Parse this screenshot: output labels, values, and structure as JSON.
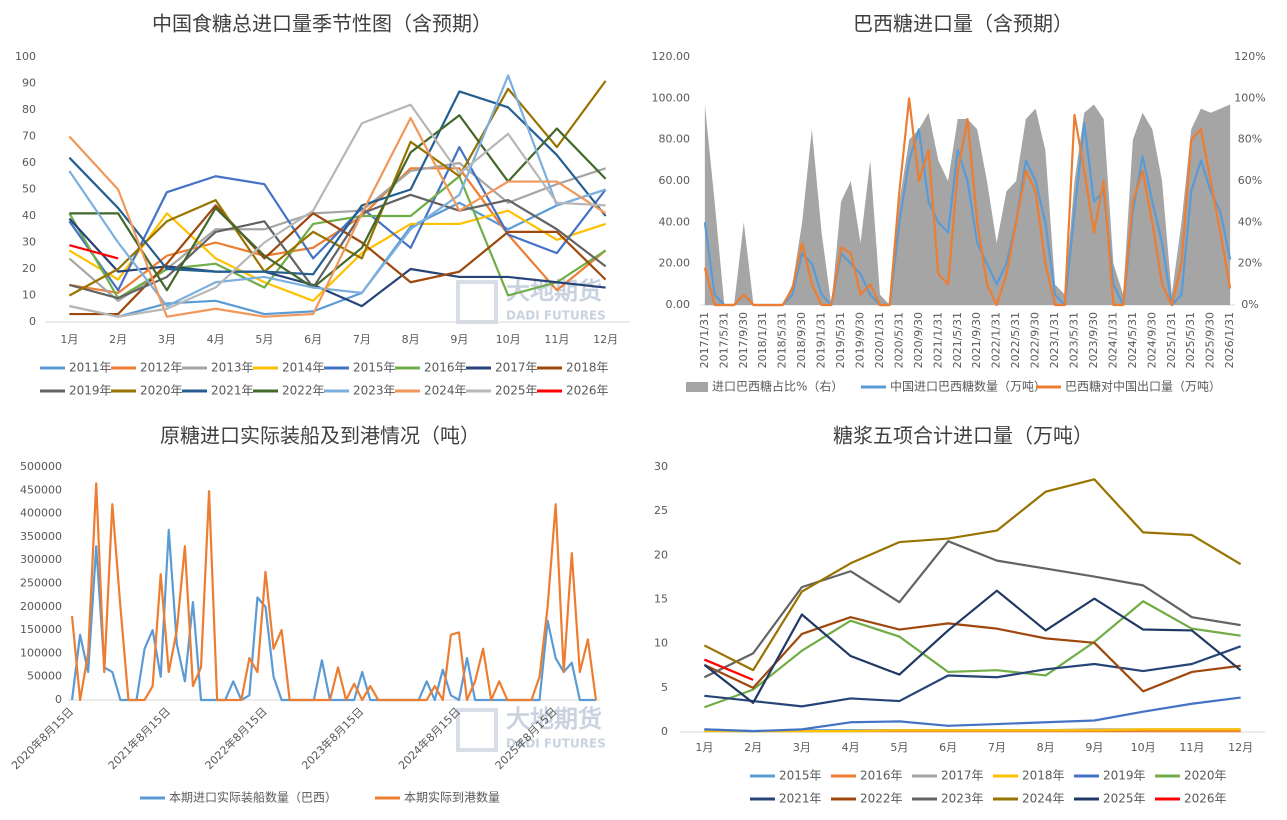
{
  "watermark": {
    "cn": "大地期货",
    "en": "DADI FUTURES"
  },
  "chart_data": [
    {
      "type": "line",
      "title": "中国食糖总进口量季节性图（含预期）",
      "categories": [
        "1月",
        "2月",
        "3月",
        "4月",
        "5月",
        "6月",
        "7月",
        "8月",
        "9月",
        "10月",
        "11月",
        "12月"
      ],
      "ylim": [
        0,
        100
      ],
      "yticks": [
        0,
        10,
        20,
        30,
        40,
        50,
        60,
        70,
        80,
        90,
        100
      ],
      "series": [
        {
          "name": "2011年",
          "color": "#5b9bd5",
          "values": [
            6,
            2,
            7,
            8,
            3,
            4,
            11,
            36,
            45,
            35,
            44,
            50
          ]
        },
        {
          "name": "2012年",
          "color": "#ed7d31",
          "values": [
            14,
            11,
            25,
            30,
            25,
            28,
            40,
            58,
            58,
            33,
            12,
            27
          ]
        },
        {
          "name": "2013年",
          "color": "#a5a5a5",
          "values": [
            24,
            8,
            20,
            35,
            35,
            41,
            42,
            57,
            60,
            45,
            52,
            58
          ]
        },
        {
          "name": "2014年",
          "color": "#ffc000",
          "values": [
            27,
            16,
            41,
            24,
            15,
            8,
            26,
            37,
            37,
            42,
            31,
            37
          ]
        },
        {
          "name": "2015年",
          "color": "#4472c4",
          "values": [
            38,
            12,
            49,
            55,
            52,
            24,
            43,
            28,
            66,
            33,
            26,
            50
          ]
        },
        {
          "name": "2016年",
          "color": "#70ad47",
          "values": [
            41,
            9,
            20,
            22,
            13,
            37,
            40,
            40,
            55,
            10,
            15,
            27
          ]
        },
        {
          "name": "2017年",
          "color": "#264478",
          "values": [
            39,
            19,
            21,
            19,
            19,
            14,
            6,
            20,
            17,
            17,
            15,
            13
          ]
        },
        {
          "name": "2018年",
          "color": "#9e480e",
          "values": [
            3,
            3,
            22,
            44,
            24,
            41,
            30,
            15,
            19,
            34,
            34,
            16
          ]
        },
        {
          "name": "2019年",
          "color": "#636363",
          "values": [
            14,
            9,
            17,
            34,
            38,
            13,
            41,
            48,
            42,
            46,
            35,
            21
          ]
        },
        {
          "name": "2020年",
          "color": "#997300",
          "values": [
            10,
            20,
            38,
            46,
            19,
            34,
            24,
            68,
            55,
            88,
            66,
            91
          ]
        },
        {
          "name": "2021年",
          "color": "#255e91",
          "values": [
            62,
            43,
            20,
            19,
            19,
            18,
            44,
            50,
            87,
            81,
            63,
            40
          ]
        },
        {
          "name": "2022年",
          "color": "#43682b",
          "values": [
            41,
            41,
            12,
            43,
            25,
            13,
            28,
            64,
            78,
            53,
            73,
            54
          ]
        },
        {
          "name": "2023年",
          "color": "#7cafdd",
          "values": [
            57,
            30,
            6,
            15,
            17,
            13,
            11,
            35,
            48,
            93,
            44,
            50
          ]
        },
        {
          "name": "2024年",
          "color": "#f1975a",
          "values": [
            70,
            50,
            2,
            5,
            2,
            3,
            41,
            77,
            42,
            53,
            53,
            41
          ]
        },
        {
          "name": "2025年",
          "color": "#b7b7b7",
          "values": [
            6,
            2,
            5,
            13,
            30,
            42,
            75,
            82,
            56,
            71,
            45,
            44
          ]
        },
        {
          "name": "2026年",
          "color": "#ff0000",
          "values": [
            29,
            24,
            null,
            null,
            null,
            null,
            null,
            null,
            null,
            null,
            null,
            null
          ]
        }
      ]
    },
    {
      "type": "line",
      "title": "巴西糖进口量（含预期）",
      "categories": [
        "2017/1/31",
        null,
        "2017/5/31",
        null,
        "2017/9/30",
        null,
        "2018/1/31",
        null,
        "2018/5/31",
        null,
        "2018/9/30",
        null,
        "2019/1/31",
        null,
        "2019/5/31",
        null,
        "2019/9/30",
        null,
        "2020/1/31",
        null,
        "2020/5/31",
        null,
        "2020/9/30",
        null,
        "2021/1/31",
        null,
        "2021/5/31",
        null,
        "2021/9/30",
        null,
        "2022/1/31",
        null,
        "2022/5/31",
        null,
        "2022/9/30",
        null,
        "2023/1/31",
        null,
        "2023/5/31",
        null,
        "2023/9/30",
        null,
        "2024/1/31",
        null,
        "2024/5/31",
        null,
        "2024/9/30",
        null,
        "2025/1/31",
        null,
        "2025/5/31",
        null,
        "2025/9/30",
        null,
        "2026/1/31"
      ],
      "ylim": [
        0,
        120
      ],
      "yticks": [
        {
          "value": 0,
          "label": "0.00"
        },
        {
          "value": 20,
          "label": "20.00"
        },
        {
          "value": 40,
          "label": "40.00"
        },
        {
          "value": 60,
          "label": "60.00"
        },
        {
          "value": 80,
          "label": "80.00"
        },
        {
          "value": 100,
          "label": "100.00"
        },
        {
          "value": 120,
          "label": "120.00"
        }
      ],
      "y2lim": [
        0,
        120
      ],
      "y2ticks": [
        {
          "value": 0,
          "label": "0%"
        },
        {
          "value": 20,
          "label": "20%"
        },
        {
          "value": 40,
          "label": "40%"
        },
        {
          "value": 60,
          "label": "60%"
        },
        {
          "value": 80,
          "label": "80%"
        },
        {
          "value": 100,
          "label": "100%"
        },
        {
          "value": 120,
          "label": "120%"
        }
      ],
      "series": [
        {
          "name": "进口巴西糖占比%（右）",
          "type": "area",
          "axis": "y2",
          "color": "#a5a5a5",
          "values": [
            97,
            50,
            0,
            0,
            40,
            0,
            0,
            0,
            0,
            10,
            40,
            85,
            35,
            0,
            50,
            60,
            30,
            70,
            5,
            0,
            50,
            80,
            85,
            93,
            70,
            60,
            90,
            90,
            85,
            60,
            30,
            55,
            60,
            90,
            95,
            75,
            10,
            5,
            60,
            93,
            97,
            90,
            20,
            5,
            80,
            93,
            85,
            60,
            5,
            40,
            85,
            95,
            93,
            95,
            97
          ]
        },
        {
          "name": "中国进口巴西糖数量（万吨）",
          "color": "#5b9bd5",
          "values": [
            40,
            5,
            0,
            0,
            5,
            0,
            0,
            0,
            0,
            5,
            25,
            20,
            5,
            0,
            25,
            20,
            15,
            5,
            0,
            0,
            40,
            70,
            85,
            50,
            40,
            35,
            75,
            60,
            30,
            20,
            10,
            20,
            40,
            70,
            60,
            40,
            5,
            0,
            45,
            88,
            50,
            55,
            10,
            0,
            45,
            72,
            50,
            30,
            0,
            5,
            55,
            70,
            55,
            45,
            22
          ]
        },
        {
          "name": "巴西糖对中国出口量（万吨）",
          "color": "#ed7d31",
          "values": [
            18,
            0,
            0,
            0,
            5,
            0,
            0,
            0,
            0,
            8,
            30,
            10,
            0,
            0,
            28,
            25,
            5,
            10,
            0,
            0,
            55,
            100,
            60,
            75,
            15,
            10,
            65,
            90,
            40,
            10,
            0,
            15,
            40,
            65,
            55,
            20,
            0,
            0,
            92,
            65,
            35,
            60,
            0,
            0,
            50,
            65,
            40,
            10,
            0,
            20,
            80,
            85,
            60,
            35,
            8
          ]
        }
      ]
    },
    {
      "type": "line",
      "title": "原糖进口实际装船及到港情况（吨）",
      "categories": [
        "2020年8月15日",
        null,
        null,
        null,
        null,
        null,
        null,
        null,
        null,
        null,
        null,
        null,
        "2021年8月15日",
        null,
        null,
        null,
        null,
        null,
        null,
        null,
        null,
        null,
        null,
        null,
        "2022年8月15日",
        null,
        null,
        null,
        null,
        null,
        null,
        null,
        null,
        null,
        null,
        null,
        "2023年8月15日",
        null,
        null,
        null,
        null,
        null,
        null,
        null,
        null,
        null,
        null,
        null,
        "2024年8月15日",
        null,
        null,
        null,
        null,
        null,
        null,
        null,
        null,
        null,
        null,
        null,
        "2025年8月15日",
        null,
        null,
        null,
        null,
        null
      ],
      "ylim": [
        0,
        500000
      ],
      "yticks": [
        0,
        50000,
        100000,
        150000,
        200000,
        250000,
        300000,
        350000,
        400000,
        450000,
        500000
      ],
      "series": [
        {
          "name": "本期进口实际装船数量（巴西）",
          "color": "#5b9bd5",
          "values": [
            0,
            140000,
            60000,
            330000,
            70000,
            60000,
            0,
            0,
            0,
            110000,
            150000,
            50000,
            365000,
            120000,
            40000,
            210000,
            0,
            0,
            0,
            0,
            40000,
            0,
            10000,
            220000,
            200000,
            50000,
            0,
            0,
            0,
            0,
            0,
            85000,
            0,
            0,
            0,
            0,
            60000,
            0,
            0,
            0,
            0,
            0,
            0,
            0,
            40000,
            0,
            65000,
            10000,
            0,
            90000,
            0,
            0,
            0,
            0,
            0,
            0,
            0,
            0,
            0,
            170000,
            90000,
            60000,
            80000,
            0,
            0,
            0
          ]
        },
        {
          "name": "本期实际到港数量",
          "color": "#ed7d31",
          "values": [
            180000,
            0,
            100000,
            465000,
            60000,
            420000,
            200000,
            0,
            0,
            0,
            30000,
            270000,
            60000,
            150000,
            330000,
            30000,
            70000,
            448000,
            0,
            0,
            0,
            0,
            90000,
            60000,
            275000,
            110000,
            150000,
            0,
            0,
            0,
            0,
            0,
            0,
            70000,
            0,
            35000,
            0,
            30000,
            0,
            0,
            0,
            0,
            0,
            0,
            0,
            30000,
            0,
            140000,
            145000,
            0,
            40000,
            110000,
            0,
            40000,
            0,
            0,
            0,
            0,
            50000,
            200000,
            420000,
            60000,
            315000,
            60000,
            130000,
            0
          ]
        }
      ]
    },
    {
      "type": "line",
      "title": "糖浆五项合计进口量（万吨）",
      "categories": [
        "1月",
        "2月",
        "3月",
        "4月",
        "5月",
        "6月",
        "7月",
        "8月",
        "9月",
        "10月",
        "11月",
        "12月"
      ],
      "ylim": [
        0,
        30
      ],
      "yticks": [
        0,
        5,
        10,
        15,
        20,
        25,
        30
      ],
      "series": [
        {
          "name": "2015年",
          "color": "#5b9bd5",
          "values": [
            0.3,
            0.1,
            0.2,
            0.2,
            0.2,
            0.2,
            0.2,
            0.2,
            0.2,
            0.2,
            0.2,
            0.2
          ]
        },
        {
          "name": "2016年",
          "color": "#ed7d31",
          "values": [
            0.2,
            0.1,
            0.1,
            0.1,
            0.1,
            0.1,
            0.1,
            0.1,
            0.1,
            0.1,
            0.1,
            0.1
          ]
        },
        {
          "name": "2017年",
          "color": "#a5a5a5",
          "values": [
            0.1,
            0.1,
            0.1,
            0.1,
            0.2,
            0.2,
            0.2,
            0.2,
            0.3,
            0.3,
            0.3,
            0.3
          ]
        },
        {
          "name": "2018年",
          "color": "#ffc000",
          "values": [
            0.1,
            0.1,
            0.1,
            0.1,
            0.2,
            0.2,
            0.2,
            0.2,
            0.2,
            0.3,
            0.3,
            0.3
          ]
        },
        {
          "name": "2019年",
          "color": "#4472c4",
          "values": [
            0.3,
            0.1,
            0.3,
            1.1,
            1.2,
            0.7,
            0.9,
            1.1,
            1.3,
            2.3,
            3.2,
            3.9
          ]
        },
        {
          "name": "2020年",
          "color": "#70ad47",
          "values": [
            2.8,
            4.8,
            9.2,
            12.6,
            10.8,
            6.8,
            7,
            6.4,
            10.2,
            14.8,
            11.7,
            10.9
          ]
        },
        {
          "name": "2021年",
          "color": "#264478",
          "values": [
            4.1,
            3.5,
            2.9,
            3.8,
            3.5,
            6.4,
            6.2,
            7.1,
            7.7,
            6.9,
            7.7,
            9.7
          ]
        },
        {
          "name": "2022年",
          "color": "#9e480e",
          "values": [
            7.6,
            5,
            11.1,
            13,
            11.6,
            12.3,
            11.7,
            10.6,
            10.1,
            4.6,
            6.8,
            7.5
          ]
        },
        {
          "name": "2023年",
          "color": "#636363",
          "values": [
            6.2,
            8.9,
            16.4,
            18.2,
            14.7,
            21.6,
            19.4,
            18.5,
            17.6,
            16.6,
            13,
            12.1
          ]
        },
        {
          "name": "2024年",
          "color": "#997300",
          "values": [
            9.8,
            7,
            15.9,
            19.1,
            21.5,
            21.9,
            22.8,
            27.2,
            28.6,
            22.6,
            22.3,
            19
          ]
        },
        {
          "name": "2025年",
          "color": "#1f3864",
          "values": [
            7.6,
            3.3,
            13.3,
            8.6,
            6.5,
            11.5,
            16,
            11.5,
            15.1,
            11.6,
            11.5,
            7
          ]
        },
        {
          "name": "2026年",
          "color": "#ff0000",
          "values": [
            8.2,
            5.9,
            null,
            null,
            null,
            null,
            null,
            null,
            null,
            null,
            null,
            null
          ]
        }
      ]
    }
  ]
}
